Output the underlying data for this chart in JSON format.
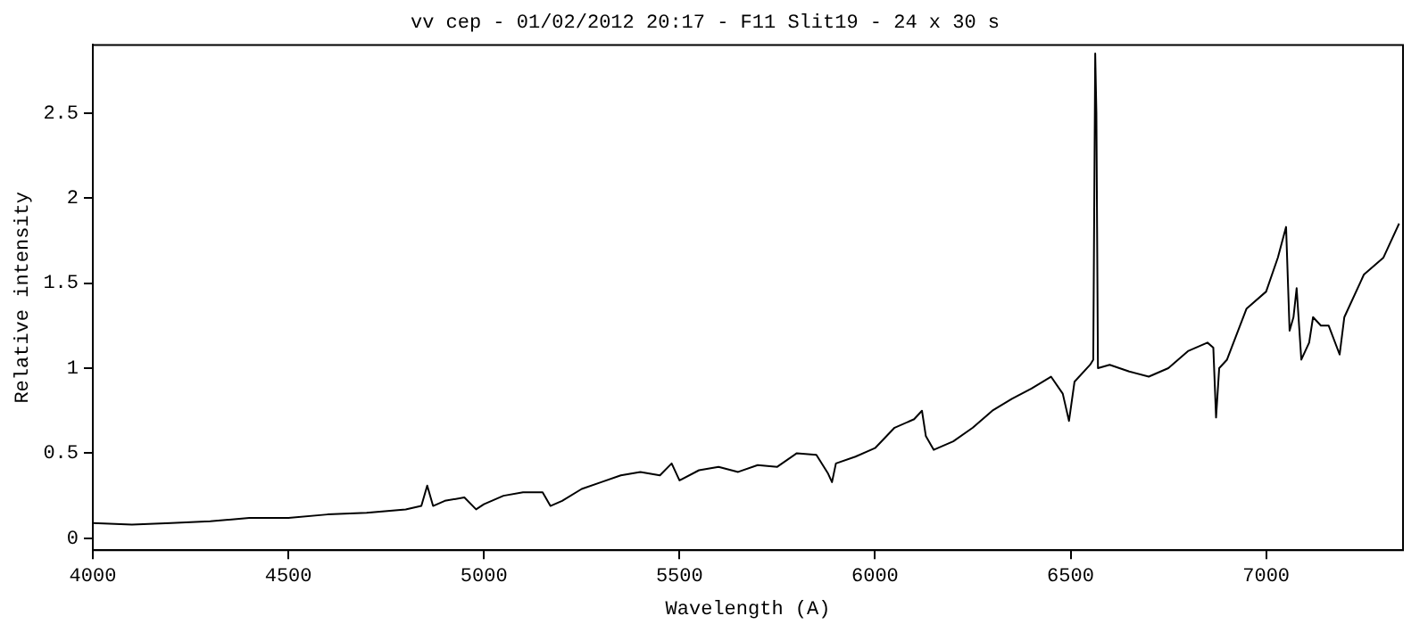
{
  "chart_data": {
    "type": "line",
    "title": "vv cep - 01/02/2012 20:17 - F11 Slit19 - 24 x 30 s",
    "xlabel": "Wavelength (A)",
    "ylabel": "Relative intensity",
    "x": [
      4000,
      4100,
      4200,
      4300,
      4400,
      4500,
      4600,
      4700,
      4800,
      4840,
      4855,
      4870,
      4900,
      4950,
      4980,
      5000,
      5050,
      5100,
      5150,
      5170,
      5200,
      5250,
      5300,
      5350,
      5400,
      5450,
      5480,
      5500,
      5550,
      5600,
      5650,
      5700,
      5750,
      5800,
      5850,
      5880,
      5890,
      5900,
      5950,
      6000,
      6050,
      6100,
      6120,
      6130,
      6150,
      6200,
      6250,
      6300,
      6350,
      6400,
      6450,
      6480,
      6496,
      6510,
      6550,
      6558,
      6563,
      6566,
      6570,
      6600,
      6650,
      6700,
      6750,
      6800,
      6850,
      6865,
      6872,
      6880,
      6900,
      6950,
      7000,
      7030,
      7051,
      7060,
      7070,
      7078,
      7090,
      7110,
      7120,
      7140,
      7160,
      7188,
      7200,
      7250,
      7300,
      7340
    ],
    "series": [
      {
        "color": "#000000",
        "values": [
          0.09,
          0.08,
          0.09,
          0.1,
          0.12,
          0.12,
          0.14,
          0.15,
          0.17,
          0.19,
          0.31,
          0.19,
          0.22,
          0.24,
          0.17,
          0.2,
          0.25,
          0.27,
          0.27,
          0.19,
          0.22,
          0.29,
          0.33,
          0.37,
          0.39,
          0.37,
          0.44,
          0.34,
          0.4,
          0.42,
          0.39,
          0.43,
          0.42,
          0.5,
          0.49,
          0.38,
          0.33,
          0.44,
          0.48,
          0.53,
          0.65,
          0.7,
          0.75,
          0.6,
          0.52,
          0.57,
          0.65,
          0.75,
          0.82,
          0.88,
          0.95,
          0.85,
          0.69,
          0.92,
          1.02,
          1.05,
          2.85,
          2.5,
          1.0,
          1.02,
          0.98,
          0.95,
          1.0,
          1.1,
          1.15,
          1.12,
          0.71,
          1.0,
          1.05,
          1.35,
          1.45,
          1.65,
          1.83,
          1.22,
          1.3,
          1.47,
          1.05,
          1.15,
          1.3,
          1.25,
          1.25,
          1.08,
          1.3,
          1.55,
          1.65,
          1.85
        ]
      }
    ],
    "xlim": [
      4000,
      7350
    ],
    "xticks": [
      4000,
      4500,
      5000,
      5500,
      6000,
      6500,
      7000
    ],
    "ylim": [
      -0.07,
      2.9
    ],
    "yticks": [
      0,
      0.5,
      1,
      1.5,
      2,
      2.5
    ],
    "grid": false,
    "legend": false,
    "marker": "none",
    "line_style": "solid"
  }
}
